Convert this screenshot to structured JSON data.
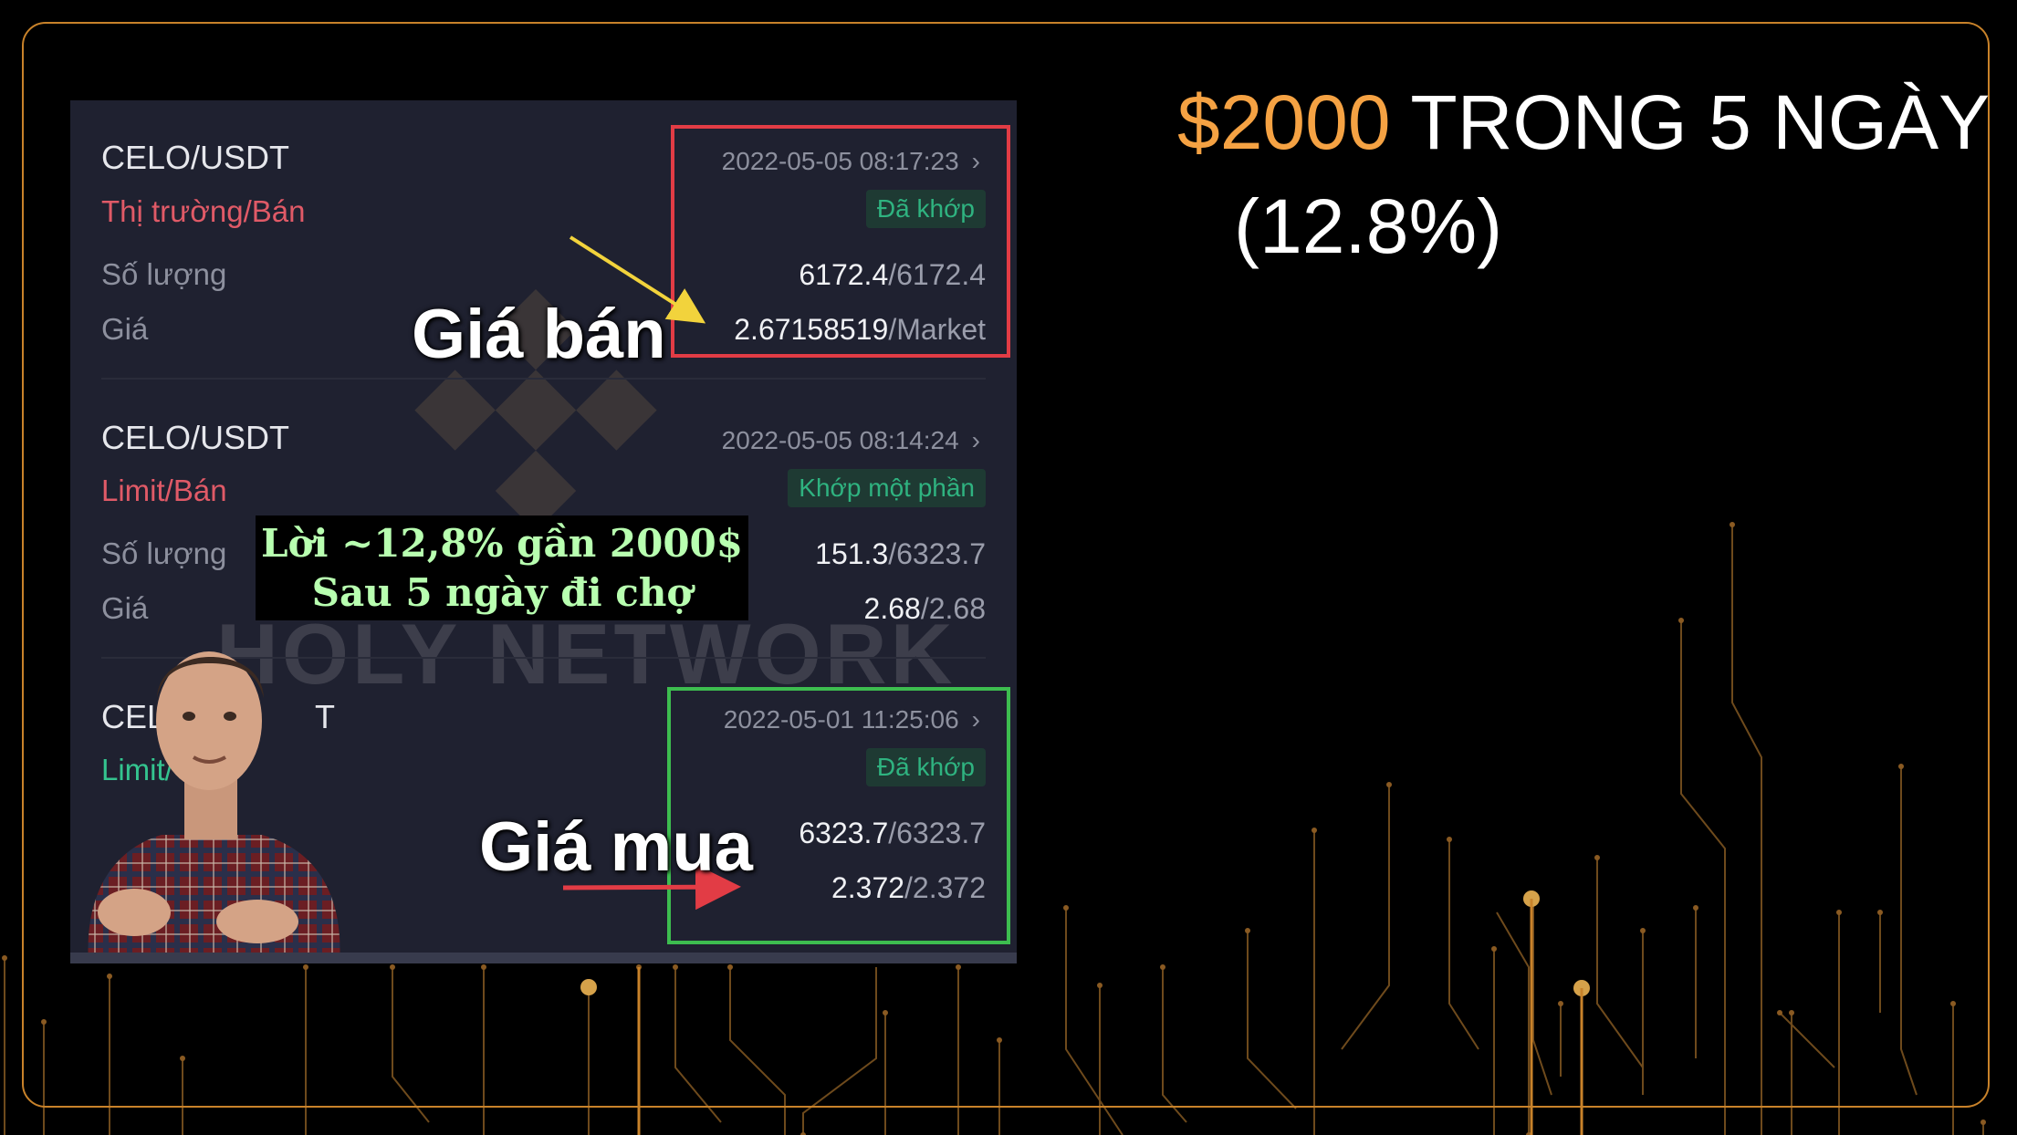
{
  "headline": {
    "amount": "$2000",
    "rest": " TRONG 5 NGÀY",
    "percent": "(12.8%)"
  },
  "colors": {
    "accent_orange": "#f5a243",
    "frame": "#c8822a",
    "sell_red": "#e05a67",
    "buy_green": "#34c48f",
    "box_red": "#e23c45",
    "box_green": "#3dbd4f"
  },
  "screenshot": {
    "watermark": "HOLY NETWORK",
    "orders": [
      {
        "pair": "CELO/USDT",
        "type": "Thị trường/Bán",
        "side": "sell",
        "timestamp": "2022-05-05 08:17:23",
        "status": "Đã khớp",
        "qty_label": "Số lượng",
        "qty_filled": "6172.4",
        "qty_total": "/6172.4",
        "price_label": "Giá",
        "price": "2.67158519",
        "price_rest": "/Market"
      },
      {
        "pair": "CELO/USDT",
        "type": "Limit/Bán",
        "side": "sell",
        "timestamp": "2022-05-05 08:14:24",
        "status": "Khớp một phần",
        "qty_label": "Số lượng",
        "qty_filled": "151.3",
        "qty_total": "/6323.7",
        "price_label": "Giá",
        "price": "2.68",
        "price_rest": "/2.68"
      },
      {
        "pair_left": "CELO/",
        "pair_right": "T",
        "type": "Limit/",
        "side": "buy",
        "timestamp": "2022-05-01 11:25:06",
        "status": "Đã khớp",
        "qty_filled": "6323.7",
        "qty_total": "/6323.7",
        "price": "2.372",
        "price_rest": "/2.372"
      }
    ],
    "callouts": {
      "sell_price": "Giá bán",
      "buy_price": "Giá mua"
    },
    "caption": {
      "line1": "Lời ~12,8% gần 2000$",
      "line2": "Sau 5 ngày đi chợ"
    },
    "chevron": "›"
  }
}
